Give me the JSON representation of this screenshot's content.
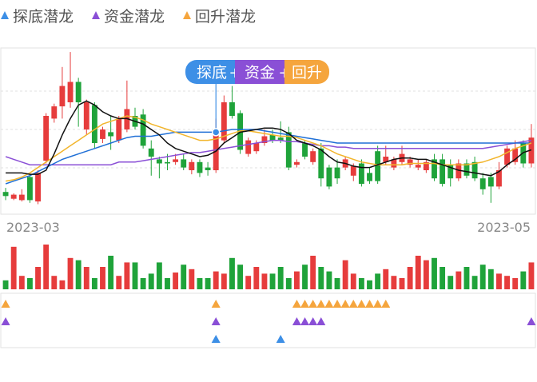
{
  "legend": [
    {
      "label": "探底潜龙",
      "color": "#3d8fe6"
    },
    {
      "label": "资金潜龙",
      "color": "#8a4fd6"
    },
    {
      "label": "回升潜龙",
      "color": "#f5a53d"
    }
  ],
  "colors": {
    "up": "#e63c3c",
    "down": "#1fa33a",
    "ma_black": "#111111",
    "ma_yellow": "#f2b52c",
    "ma_purple": "#8a4fd6",
    "ma_blue": "#1f6fd6",
    "signal_tandi": "#3d8fe6",
    "signal_zijin": "#8a4fd6",
    "signal_huisheng": "#f5a53d"
  },
  "badge": {
    "part1": "探底",
    "part2": "资金",
    "part3": "回升"
  },
  "chart_data": {
    "type": "candlestick",
    "x_start_label": "2023-03",
    "x_end_label": "2023-05",
    "price_range": [
      0,
      100
    ],
    "candles": [
      {
        "o": 34,
        "c": 31,
        "h": 37,
        "l": 28
      },
      {
        "o": 29,
        "c": 32,
        "h": 33,
        "l": 28
      },
      {
        "o": 28,
        "c": 32,
        "h": 36,
        "l": 27
      },
      {
        "o": 45,
        "c": 28,
        "h": 47,
        "l": 26
      },
      {
        "o": 27,
        "c": 48,
        "h": 50,
        "l": 25
      },
      {
        "o": 57,
        "c": 90,
        "h": 92,
        "l": 55
      },
      {
        "o": 88,
        "c": 97,
        "h": 99,
        "l": 85
      },
      {
        "o": 97,
        "c": 112,
        "h": 126,
        "l": 88
      },
      {
        "o": 100,
        "c": 115,
        "h": 137,
        "l": 96
      },
      {
        "o": 115,
        "c": 100,
        "h": 118,
        "l": 82
      },
      {
        "o": 80,
        "c": 100,
        "h": 102,
        "l": 76
      },
      {
        "o": 98,
        "c": 70,
        "h": 100,
        "l": 66
      },
      {
        "o": 73,
        "c": 80,
        "h": 82,
        "l": 70
      },
      {
        "o": 78,
        "c": 75,
        "h": 90,
        "l": 65
      },
      {
        "o": 72,
        "c": 88,
        "h": 90,
        "l": 70
      },
      {
        "o": 80,
        "c": 95,
        "h": 116,
        "l": 78
      },
      {
        "o": 90,
        "c": 82,
        "h": 96,
        "l": 80
      },
      {
        "o": 91,
        "c": 68,
        "h": 95,
        "l": 66
      },
      {
        "o": 66,
        "c": 60,
        "h": 72,
        "l": 46
      },
      {
        "o": 58,
        "c": 55,
        "h": 60,
        "l": 44
      },
      {
        "o": 56,
        "c": 55,
        "h": 62,
        "l": 50
      },
      {
        "o": 56,
        "c": 58,
        "h": 62,
        "l": 54
      },
      {
        "o": 58,
        "c": 52,
        "h": 62,
        "l": 50
      },
      {
        "o": 50,
        "c": 56,
        "h": 58,
        "l": 47
      },
      {
        "o": 56,
        "c": 48,
        "h": 58,
        "l": 45
      },
      {
        "o": 52,
        "c": 50,
        "h": 56,
        "l": 46
      },
      {
        "o": 50,
        "c": 76,
        "h": 88,
        "l": 48
      },
      {
        "o": 72,
        "c": 100,
        "h": 105,
        "l": 70
      },
      {
        "o": 100,
        "c": 90,
        "h": 112,
        "l": 88
      },
      {
        "o": 92,
        "c": 65,
        "h": 94,
        "l": 62
      },
      {
        "o": 62,
        "c": 72,
        "h": 74,
        "l": 60
      },
      {
        "o": 64,
        "c": 70,
        "h": 72,
        "l": 62
      },
      {
        "o": 70,
        "c": 75,
        "h": 80,
        "l": 68
      },
      {
        "o": 76,
        "c": 72,
        "h": 80,
        "l": 70
      },
      {
        "o": 74,
        "c": 72,
        "h": 86,
        "l": 70
      },
      {
        "o": 78,
        "c": 52,
        "h": 82,
        "l": 50
      },
      {
        "o": 54,
        "c": 56,
        "h": 58,
        "l": 52
      },
      {
        "o": 70,
        "c": 60,
        "h": 72,
        "l": 58
      },
      {
        "o": 56,
        "c": 64,
        "h": 66,
        "l": 54
      },
      {
        "o": 66,
        "c": 44,
        "h": 70,
        "l": 38
      },
      {
        "o": 52,
        "c": 38,
        "h": 54,
        "l": 36
      },
      {
        "o": 52,
        "c": 44,
        "h": 58,
        "l": 40
      },
      {
        "o": 52,
        "c": 58,
        "h": 60,
        "l": 50
      },
      {
        "o": 46,
        "c": 53,
        "h": 55,
        "l": 42
      },
      {
        "o": 55,
        "c": 40,
        "h": 58,
        "l": 38
      },
      {
        "o": 48,
        "c": 42,
        "h": 52,
        "l": 40
      },
      {
        "o": 64,
        "c": 42,
        "h": 68,
        "l": 40
      },
      {
        "o": 56,
        "c": 60,
        "h": 68,
        "l": 54
      },
      {
        "o": 52,
        "c": 58,
        "h": 60,
        "l": 50
      },
      {
        "o": 56,
        "c": 62,
        "h": 68,
        "l": 54
      },
      {
        "o": 54,
        "c": 58,
        "h": 60,
        "l": 52
      },
      {
        "o": 52,
        "c": 54,
        "h": 58,
        "l": 50
      },
      {
        "o": 50,
        "c": 56,
        "h": 58,
        "l": 48
      },
      {
        "o": 58,
        "c": 44,
        "h": 62,
        "l": 42
      },
      {
        "o": 58,
        "c": 40,
        "h": 62,
        "l": 38
      },
      {
        "o": 54,
        "c": 44,
        "h": 58,
        "l": 38
      },
      {
        "o": 44,
        "c": 55,
        "h": 58,
        "l": 42
      },
      {
        "o": 55,
        "c": 46,
        "h": 58,
        "l": 44
      },
      {
        "o": 56,
        "c": 44,
        "h": 60,
        "l": 42
      },
      {
        "o": 44,
        "c": 36,
        "h": 48,
        "l": 32
      },
      {
        "o": 45,
        "c": 38,
        "h": 48,
        "l": 26
      },
      {
        "o": 38,
        "c": 50,
        "h": 56,
        "l": 36
      },
      {
        "o": 54,
        "c": 66,
        "h": 68,
        "l": 52
      },
      {
        "o": 56,
        "c": 66,
        "h": 72,
        "l": 54
      },
      {
        "o": 70,
        "c": 55,
        "h": 72,
        "l": 52
      },
      {
        "o": 55,
        "c": 74,
        "h": 84,
        "l": 52
      }
    ],
    "ma_black": [
      48,
      48,
      48,
      47,
      47,
      50,
      62,
      76,
      88,
      98,
      101,
      98,
      93,
      90,
      88,
      88,
      86,
      84,
      80,
      76,
      70,
      66,
      64,
      62,
      60,
      61,
      64,
      70,
      74,
      78,
      79,
      80,
      81,
      81,
      80,
      77,
      72,
      70,
      68,
      65,
      60,
      56,
      55,
      53,
      52,
      52,
      54,
      56,
      58,
      59,
      59,
      58,
      58,
      56,
      54,
      52,
      50,
      49,
      48,
      47,
      46,
      49,
      54,
      58,
      63,
      65
    ],
    "ma_yellow": [
      42,
      43,
      45,
      48,
      52,
      56,
      60,
      64,
      68,
      72,
      76,
      80,
      84,
      86,
      88,
      90,
      89,
      87,
      84,
      82,
      80,
      78,
      76,
      74,
      72,
      72,
      73,
      75,
      77,
      79,
      79,
      78,
      77,
      76,
      75,
      75,
      74,
      72,
      70,
      68,
      65,
      62,
      60,
      58,
      56,
      55,
      54,
      54,
      54,
      54,
      55,
      55,
      55,
      55,
      54,
      54,
      54,
      54,
      55,
      56,
      58,
      60,
      63,
      66,
      68,
      70
    ],
    "ma_purple": [
      60,
      58,
      56,
      54,
      54,
      54,
      54,
      54,
      54,
      54,
      54,
      54,
      54,
      54,
      56,
      56,
      56,
      57,
      58,
      59,
      60,
      61,
      62,
      63,
      63,
      64,
      65,
      66,
      67,
      68,
      69,
      70,
      71,
      72,
      72,
      71,
      71,
      70,
      69,
      68,
      68,
      67,
      67,
      66,
      66,
      66,
      66,
      66,
      66,
      66,
      66,
      66,
      66,
      66,
      66,
      66,
      66,
      66,
      66,
      66,
      67,
      68,
      69,
      70,
      71,
      72
    ],
    "ma_blue": [
      40,
      42,
      44,
      46,
      49,
      52,
      55,
      58,
      60,
      62,
      64,
      66,
      68,
      70,
      72,
      74,
      75,
      75,
      75,
      76,
      77,
      78,
      78,
      78,
      78,
      78,
      78,
      79,
      80,
      80,
      80,
      80,
      79,
      78,
      77,
      76,
      75,
      74,
      73,
      72,
      71,
      70,
      70,
      70,
      70,
      70,
      70,
      70,
      70,
      70,
      70,
      70,
      70,
      70,
      70,
      70,
      70,
      70,
      70,
      70,
      70,
      70,
      70,
      70,
      70,
      70
    ],
    "volume": [
      8,
      38,
      12,
      10,
      20,
      40,
      12,
      8,
      28,
      26,
      20,
      10,
      20,
      30,
      12,
      24,
      24,
      10,
      14,
      24,
      10,
      15,
      22,
      18,
      10,
      10,
      16,
      14,
      28,
      22,
      12,
      20,
      14,
      14,
      20,
      10,
      16,
      22,
      30,
      20,
      16,
      10,
      26,
      14,
      10,
      8,
      14,
      18,
      12,
      10,
      20,
      30,
      26,
      28,
      20,
      12,
      16,
      20,
      12,
      22,
      18,
      14,
      12,
      10,
      16,
      24
    ],
    "signals": {
      "huisheng": [
        0,
        26,
        36,
        37,
        38,
        39,
        40,
        41,
        42,
        43,
        44,
        45,
        46,
        47
      ],
      "zijin": [
        0,
        26,
        36,
        37,
        38,
        39,
        65
      ],
      "tandi": [
        26,
        34
      ]
    }
  }
}
